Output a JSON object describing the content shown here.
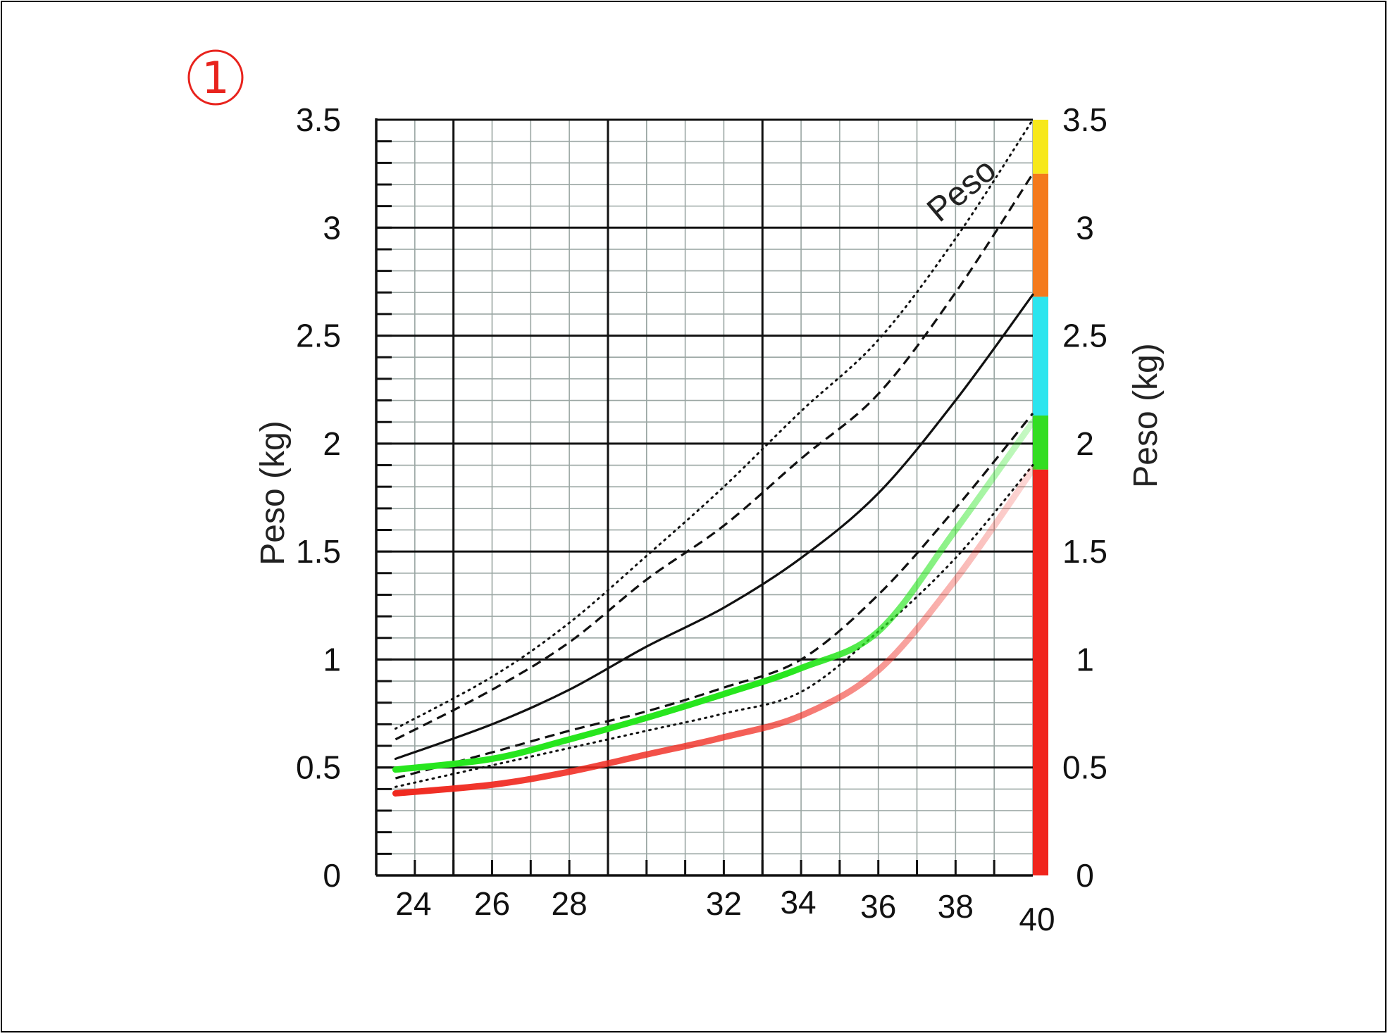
{
  "badge": {
    "text": "1"
  },
  "chart_data": {
    "type": "line",
    "title": "",
    "xlabel": "",
    "ylabel": "Peso (kg)",
    "ylabel_right": "Peso (kg)",
    "curve_label": "Peso",
    "xlim": [
      23,
      40
    ],
    "ylim": [
      0,
      3.5
    ],
    "grid": true,
    "x_tick_labels": [
      "24",
      "26",
      "28",
      "32",
      "34",
      "36",
      "38",
      "40"
    ],
    "x_tick_values": [
      24,
      26,
      28,
      32,
      34,
      36,
      38,
      40
    ],
    "y_ticks": [
      0,
      0.5,
      1,
      1.5,
      2,
      2.5,
      3,
      3.5
    ],
    "y_tick_labels": [
      "0",
      "0.5",
      "1",
      "1.5",
      "2",
      "2.5",
      "3",
      "3.5"
    ],
    "series": [
      {
        "style": "dotted",
        "color": "#111111",
        "x": [
          23.5,
          26,
          28,
          30,
          32,
          34,
          36,
          38,
          40
        ],
        "y": [
          0.68,
          0.92,
          1.17,
          1.48,
          1.8,
          2.15,
          2.48,
          2.95,
          3.5
        ]
      },
      {
        "style": "dashed",
        "color": "#111111",
        "x": [
          23.5,
          26,
          28,
          30,
          32,
          34,
          36,
          38,
          40
        ],
        "y": [
          0.63,
          0.86,
          1.08,
          1.37,
          1.62,
          1.93,
          2.23,
          2.7,
          3.25
        ]
      },
      {
        "style": "solid",
        "color": "#111111",
        "x": [
          23.5,
          26,
          28,
          30,
          32,
          34,
          36,
          38,
          40
        ],
        "y": [
          0.54,
          0.7,
          0.86,
          1.06,
          1.24,
          1.47,
          1.77,
          2.2,
          2.69
        ]
      },
      {
        "style": "dashed",
        "color": "#111111",
        "x": [
          23.5,
          26,
          28,
          30,
          32,
          34,
          36,
          38,
          40
        ],
        "y": [
          0.45,
          0.57,
          0.67,
          0.76,
          0.87,
          1.0,
          1.3,
          1.7,
          2.14
        ]
      },
      {
        "style": "dotted",
        "color": "#111111",
        "x": [
          23.5,
          26,
          28,
          30,
          32,
          34,
          36,
          38,
          40
        ],
        "y": [
          0.41,
          0.51,
          0.59,
          0.67,
          0.75,
          0.85,
          1.13,
          1.47,
          1.9
        ]
      },
      {
        "style": "thick",
        "color": "#27e61e",
        "x": [
          23.5,
          26,
          28,
          30,
          32,
          34,
          36,
          38,
          40
        ],
        "y": [
          0.49,
          0.54,
          0.63,
          0.73,
          0.84,
          0.96,
          1.13,
          1.6,
          2.1
        ]
      },
      {
        "style": "thick",
        "color": "#f0291f",
        "x": [
          23.5,
          26,
          28,
          30,
          32,
          34,
          36,
          38,
          40
        ],
        "y": [
          0.38,
          0.42,
          0.48,
          0.56,
          0.64,
          0.74,
          0.95,
          1.37,
          1.88
        ]
      }
    ],
    "color_bands": [
      {
        "from": 0,
        "to": 1.88,
        "color": "#f0241c"
      },
      {
        "from": 1.88,
        "to": 2.13,
        "color": "#33dd22"
      },
      {
        "from": 2.13,
        "to": 2.68,
        "color": "#2ce5ee"
      },
      {
        "from": 2.68,
        "to": 3.25,
        "color": "#f47a1c"
      },
      {
        "from": 3.25,
        "to": 3.5,
        "color": "#f7e81a"
      }
    ]
  }
}
